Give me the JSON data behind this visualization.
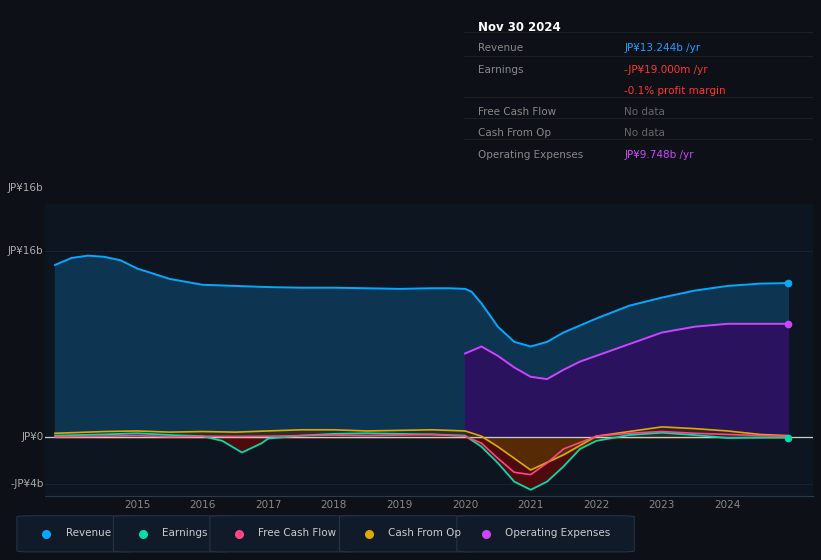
{
  "bg_color": "#0d1117",
  "plot_bg_color": "#0d1520",
  "grid_color": "#1a2535",
  "ylim": [
    -5000000000.0,
    20000000000.0
  ],
  "ytick_positions": [
    -4000000000.0,
    0,
    16000000000.0
  ],
  "ytick_labels": [
    "-JP¥4b",
    "JP¥0",
    "JP¥16b"
  ],
  "xlim": [
    2013.6,
    2025.3
  ],
  "xticks": [
    2015,
    2016,
    2017,
    2018,
    2019,
    2020,
    2021,
    2022,
    2023,
    2024
  ],
  "title_box": {
    "title": "Nov 30 2024",
    "rows": [
      {
        "label": "Revenue",
        "value": "JP¥13.244b /yr",
        "value_color": "#1a9fff"
      },
      {
        "label": "Earnings",
        "value": "-JP¥19.000m /yr",
        "value_color": "#ff3333"
      },
      {
        "label": "",
        "value": "-0.1% profit margin",
        "value_color": "#ff3333"
      },
      {
        "label": "Free Cash Flow",
        "value": "No data",
        "value_color": "#666666"
      },
      {
        "label": "Cash From Op",
        "value": "No data",
        "value_color": "#666666"
      },
      {
        "label": "Operating Expenses",
        "value": "JP¥9.748b /yr",
        "value_color": "#cc44ff"
      }
    ]
  },
  "legend": [
    {
      "label": "Revenue",
      "color": "#00aaff"
    },
    {
      "label": "Earnings",
      "color": "#00ddaa"
    },
    {
      "label": "Free Cash Flow",
      "color": "#ff4488"
    },
    {
      "label": "Cash From Op",
      "color": "#ddaa00"
    },
    {
      "label": "Operating Expenses",
      "color": "#cc44ff"
    }
  ],
  "revenue_x": [
    2013.75,
    2014.0,
    2014.25,
    2014.5,
    2014.75,
    2015.0,
    2015.5,
    2016.0,
    2016.5,
    2017.0,
    2017.5,
    2018.0,
    2018.5,
    2019.0,
    2019.5,
    2019.75,
    2020.0,
    2020.1,
    2020.25,
    2020.5,
    2020.75,
    2021.0,
    2021.25,
    2021.5,
    2022.0,
    2022.5,
    2023.0,
    2023.5,
    2024.0,
    2024.5,
    2024.92
  ],
  "revenue_y": [
    14800000000.0,
    15400000000.0,
    15600000000.0,
    15500000000.0,
    15200000000.0,
    14500000000.0,
    13600000000.0,
    13100000000.0,
    13000000000.0,
    12900000000.0,
    12850000000.0,
    12850000000.0,
    12800000000.0,
    12750000000.0,
    12800000000.0,
    12800000000.0,
    12750000000.0,
    12500000000.0,
    11500000000.0,
    9500000000.0,
    8200000000.0,
    7800000000.0,
    8200000000.0,
    9000000000.0,
    10200000000.0,
    11300000000.0,
    12000000000.0,
    12600000000.0,
    13000000000.0,
    13200000000.0,
    13244000000.0
  ],
  "opex_x": [
    2020.0,
    2020.25,
    2020.5,
    2020.75,
    2021.0,
    2021.25,
    2021.5,
    2021.75,
    2022.0,
    2022.5,
    2023.0,
    2023.5,
    2024.0,
    2024.5,
    2024.92
  ],
  "opex_y": [
    7200000000.0,
    7800000000.0,
    7000000000.0,
    6000000000.0,
    5200000000.0,
    5000000000.0,
    5800000000.0,
    6500000000.0,
    7000000000.0,
    8000000000.0,
    9000000000.0,
    9500000000.0,
    9748000000.0,
    9748000000.0,
    9748000000.0
  ],
  "earnings_x": [
    2013.75,
    2014.5,
    2015.0,
    2015.5,
    2016.0,
    2016.3,
    2016.6,
    2016.9,
    2017.0,
    2017.5,
    2018.0,
    2018.5,
    2019.0,
    2019.5,
    2020.0,
    2020.25,
    2020.5,
    2020.75,
    2021.0,
    2021.25,
    2021.5,
    2021.75,
    2022.0,
    2022.5,
    2023.0,
    2023.5,
    2024.0,
    2024.5,
    2024.92
  ],
  "earnings_y": [
    150000000.0,
    250000000.0,
    350000000.0,
    200000000.0,
    100000000.0,
    -300000000.0,
    -1300000000.0,
    -500000000.0,
    -100000000.0,
    150000000.0,
    300000000.0,
    350000000.0,
    300000000.0,
    250000000.0,
    150000000.0,
    -800000000.0,
    -2200000000.0,
    -3800000000.0,
    -4500000000.0,
    -3800000000.0,
    -2500000000.0,
    -1000000000.0,
    -300000000.0,
    200000000.0,
    400000000.0,
    200000000.0,
    -50000000.0,
    -19000000.0,
    -19000000.0
  ],
  "fcf_x": [
    2013.75,
    2014.5,
    2015.0,
    2015.5,
    2016.0,
    2016.5,
    2017.0,
    2017.5,
    2018.0,
    2018.5,
    2019.0,
    2019.5,
    2020.0,
    2020.25,
    2020.5,
    2020.75,
    2021.0,
    2021.25,
    2021.5,
    2022.0,
    2022.5,
    2023.0,
    2023.5,
    2024.0,
    2024.5,
    2024.92
  ],
  "fcf_y": [
    50000000.0,
    100000000.0,
    150000000.0,
    50000000.0,
    100000000.0,
    80000000.0,
    100000000.0,
    150000000.0,
    200000000.0,
    150000000.0,
    200000000.0,
    250000000.0,
    100000000.0,
    -500000000.0,
    -1800000000.0,
    -3000000000.0,
    -3200000000.0,
    -2200000000.0,
    -1000000000.0,
    100000000.0,
    350000000.0,
    500000000.0,
    350000000.0,
    250000000.0,
    150000000.0,
    80000000.0
  ],
  "cfop_x": [
    2013.75,
    2014.5,
    2015.0,
    2015.5,
    2016.0,
    2016.5,
    2017.0,
    2017.5,
    2018.0,
    2018.5,
    2019.0,
    2019.5,
    2020.0,
    2020.25,
    2020.5,
    2020.75,
    2021.0,
    2021.5,
    2022.0,
    2022.5,
    2023.0,
    2023.5,
    2024.0,
    2024.5,
    2024.92
  ],
  "cfop_y": [
    350000000.0,
    500000000.0,
    550000000.0,
    450000000.0,
    500000000.0,
    450000000.0,
    550000000.0,
    650000000.0,
    650000000.0,
    550000000.0,
    600000000.0,
    650000000.0,
    550000000.0,
    100000000.0,
    -800000000.0,
    -1800000000.0,
    -2800000000.0,
    -1500000000.0,
    100000000.0,
    500000000.0,
    900000000.0,
    750000000.0,
    550000000.0,
    250000000.0,
    150000000.0
  ]
}
